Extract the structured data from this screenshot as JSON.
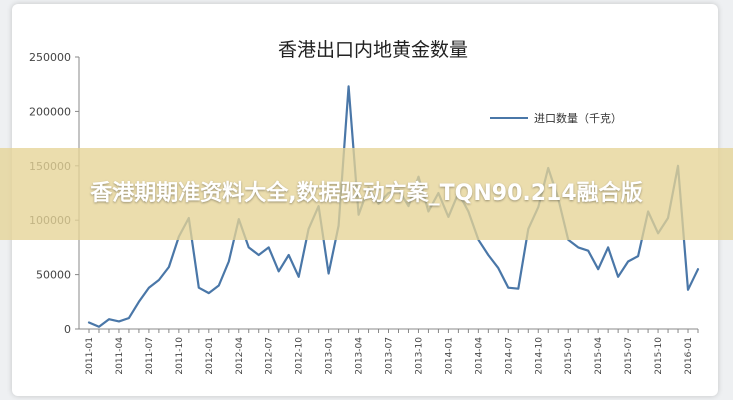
{
  "overlay": {
    "caption": "香港期期准资料大全,数据驱动方案_TQN90.214融合版"
  },
  "colors": {
    "line": "#4a77a8",
    "axis": "#888888",
    "banner": "#e6d496"
  },
  "chart_data": {
    "type": "line",
    "title": "香港出口内地黄金数量",
    "xlabel": "",
    "ylabel": "",
    "ylim": [
      0,
      250000
    ],
    "yticks": [
      0,
      50000,
      100000,
      150000,
      200000,
      250000
    ],
    "ytick_labels": [
      "0",
      "50000",
      "100000",
      "150000",
      "200000",
      "250000"
    ],
    "xtick_labels": [
      "2011-01",
      "2011-04",
      "2011-07",
      "2011-10",
      "2012-01",
      "2012-04",
      "2012-07",
      "2012-10",
      "2013-01",
      "2013-04",
      "2013-07",
      "2013-10",
      "2014-01",
      "2014-04",
      "2014-07",
      "2014-10",
      "2015-01",
      "2015-04",
      "2015-07",
      "2015-10",
      "2016-01"
    ],
    "grid": false,
    "legend": "top-right",
    "series": [
      {
        "name": "进口数量（千克）",
        "x": [
          "2011-01",
          "2011-02",
          "2011-03",
          "2011-04",
          "2011-05",
          "2011-06",
          "2011-07",
          "2011-08",
          "2011-09",
          "2011-10",
          "2011-11",
          "2011-12",
          "2012-01",
          "2012-02",
          "2012-03",
          "2012-04",
          "2012-05",
          "2012-06",
          "2012-07",
          "2012-08",
          "2012-09",
          "2012-10",
          "2012-11",
          "2012-12",
          "2013-01",
          "2013-02",
          "2013-03",
          "2013-04",
          "2013-05",
          "2013-06",
          "2013-07",
          "2013-08",
          "2013-09",
          "2013-10",
          "2013-11",
          "2013-12",
          "2014-01",
          "2014-02",
          "2014-03",
          "2014-04",
          "2014-05",
          "2014-06",
          "2014-07",
          "2014-08",
          "2014-09",
          "2014-10",
          "2014-11",
          "2014-12",
          "2015-01",
          "2015-02",
          "2015-03",
          "2015-04",
          "2015-05",
          "2015-06",
          "2015-07",
          "2015-08",
          "2015-09",
          "2015-10",
          "2015-11",
          "2015-12",
          "2016-01",
          "2016-02"
        ],
        "values": [
          6000,
          2000,
          9000,
          7000,
          10000,
          25000,
          38000,
          45000,
          57000,
          85000,
          102000,
          38000,
          33000,
          40000,
          62000,
          101000,
          75000,
          68000,
          75000,
          53000,
          68000,
          48000,
          92000,
          113000,
          51000,
          95000,
          223000,
          105000,
          130000,
          115000,
          125000,
          128000,
          113000,
          140000,
          108000,
          125000,
          103000,
          125000,
          108000,
          82000,
          68000,
          56000,
          38000,
          37000,
          92000,
          112000,
          148000,
          120000,
          82000,
          75000,
          72000,
          55000,
          75000,
          48000,
          62000,
          67000,
          108000,
          88000,
          102000,
          150000,
          36000,
          55000
        ]
      }
    ]
  }
}
